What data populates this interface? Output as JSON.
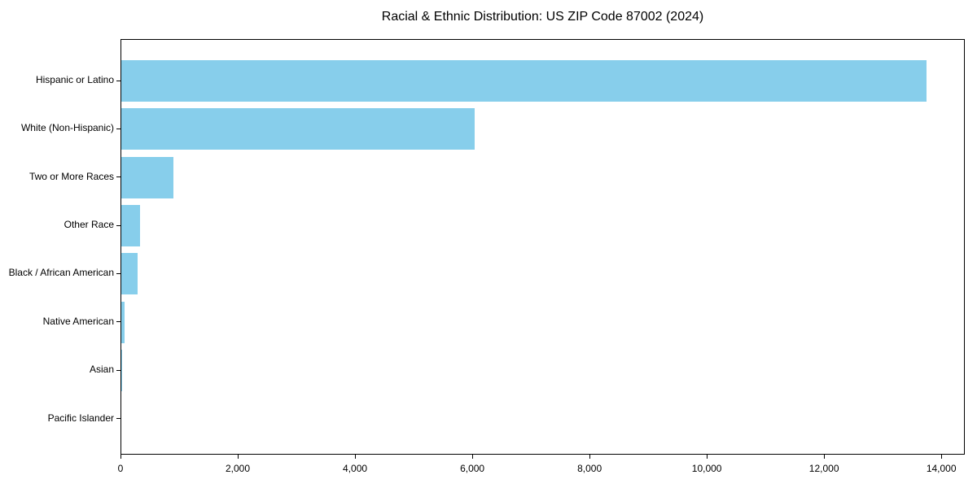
{
  "chart_data": {
    "type": "bar",
    "orientation": "horizontal",
    "title": "Racial & Ethnic Distribution: US ZIP Code 87002 (2024)",
    "categories": [
      "Hispanic or Latino",
      "White (Non-Hispanic)",
      "Two or More Races",
      "Other Race",
      "Black / African American",
      "Native American",
      "Asian",
      "Pacific Islander"
    ],
    "values": [
      13727,
      6028,
      885,
      315,
      280,
      55,
      12,
      0
    ],
    "xlabel": "",
    "ylabel": "",
    "xlim": [
      0,
      14400
    ],
    "x_ticks": [
      0,
      2000,
      4000,
      6000,
      8000,
      10000,
      12000,
      14000
    ],
    "x_tick_labels": [
      "0",
      "2,000",
      "4,000",
      "6,000",
      "8,000",
      "10,000",
      "12,000",
      "14,000"
    ],
    "grid": false,
    "bar_color": "#87CEEB",
    "axis_color": "#000000",
    "text_color": "#000000",
    "background_color": "#ffffff"
  }
}
